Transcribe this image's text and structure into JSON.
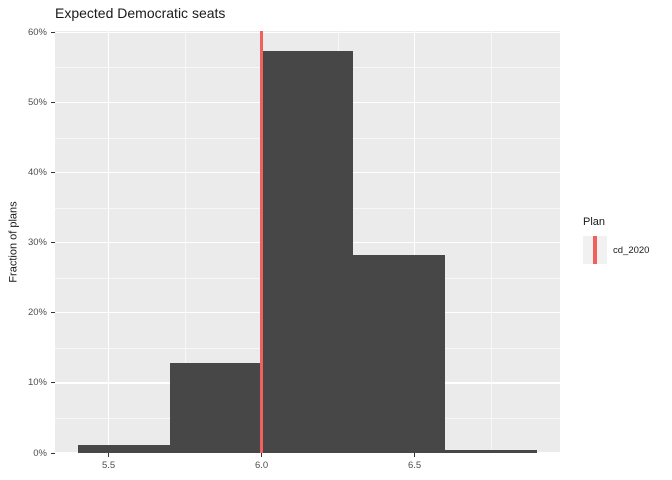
{
  "chart_data": {
    "type": "bar",
    "subtype": "histogram",
    "title": "Expected Democratic seats",
    "xlabel": "",
    "ylabel": "Fraction of plans",
    "bin_edges": [
      5.4,
      5.7,
      6.0,
      6.3,
      6.6,
      6.9
    ],
    "values_pct": [
      1.1,
      12.9,
      57.3,
      28.3,
      0.4
    ],
    "xlim": [
      5.325,
      6.975
    ],
    "ylim": [
      0,
      60.2
    ],
    "x_major_ticks": [
      5.5,
      6.0,
      6.5
    ],
    "x_tick_labels": [
      "5.5",
      "6.0",
      "6.5"
    ],
    "x_minor_ticks": [
      5.75,
      6.25,
      6.75
    ],
    "y_major_ticks": [
      0,
      10,
      20,
      30,
      40,
      50,
      60
    ],
    "y_tick_labels": [
      "0%",
      "10%",
      "20%",
      "30%",
      "40%",
      "50%",
      "60%"
    ],
    "y_minor_ticks": [
      5,
      15,
      25,
      35,
      45,
      55
    ],
    "grid": "on",
    "reference_line": {
      "x": 6.0,
      "color": "#F25F5F"
    },
    "legend": {
      "position": "right",
      "title": "Plan",
      "entries": [
        {
          "label": "cd_2020",
          "key_type": "vline",
          "color": "#F25F5F"
        }
      ]
    },
    "colors": {
      "bar_fill": "#474747",
      "panel_bg": "#EBEBEB",
      "grid_major": "#FFFFFF",
      "grid_minor": "#FFFFFF",
      "tick_label": "#4D4D4D",
      "axis_tick": "#333333",
      "legend_key_bg": "#F1F1F1",
      "title_text": "#1A1A1A"
    }
  }
}
